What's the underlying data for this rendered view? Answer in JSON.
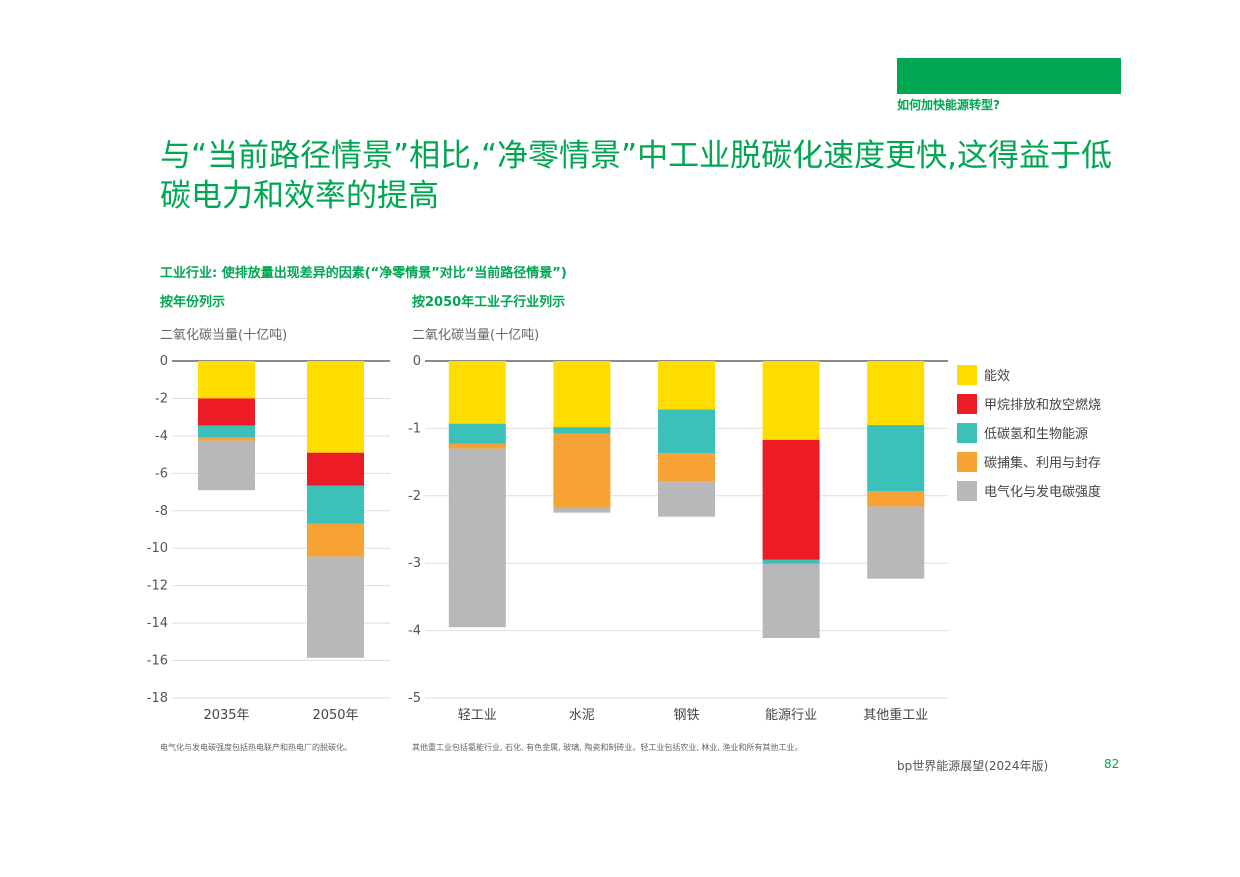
{
  "colors": {
    "accent": "#00a651",
    "efficiency": "#FFDD00",
    "methane": "#ED1C24",
    "hydrogen": "#3CC0BA",
    "ccus": "#F7A234",
    "electrification": "#B8B8BA",
    "axis": "#444444",
    "grid": "#dddddd"
  },
  "header": {
    "section_tag": "如何加快能源转型?",
    "title": "与“当前路径情景”相比,“净零情景”中工业脱碳化速度更快,这得益于低碳电力和效率的提高"
  },
  "subtitle": "工业行业: 使排放量出现差异的因素(“净零情景”对比“当前路径情景”)",
  "left_panel": {
    "title": "按年份列示",
    "unit": "二氧化碳当量(十亿吨)"
  },
  "right_panel": {
    "title": "按2050年工业子行业列示",
    "unit": "二氧化碳当量(十亿吨)"
  },
  "footnotes": {
    "left": "电气化与发电碳强度包括热电联产和热电厂的脱碳化。",
    "right": "其他重工业包括氨能行业, 石化, 有色金属, 玻璃, 陶瓷和制砖业。轻工业包括农业, 林业, 渔业和所有其他工业。"
  },
  "footer": {
    "publication": "bp世界能源展望(2024年版)",
    "page_number": "82"
  },
  "chart_data": [
    {
      "type": "bar",
      "stacked": true,
      "categories": [
        "2035年",
        "2050年"
      ],
      "series": [
        {
          "name": "能效",
          "color": "#FFDD00",
          "values": [
            -2.0,
            -4.9
          ]
        },
        {
          "name": "甲烷排放和放空燃烧",
          "color": "#ED1C24",
          "values": [
            -1.45,
            -1.75
          ]
        },
        {
          "name": "低碳氢和生物能源",
          "color": "#3CC0BA",
          "values": [
            -0.65,
            -2.05
          ]
        },
        {
          "name": "碳捕集、利用与封存",
          "color": "#F7A234",
          "values": [
            -0.15,
            -1.75
          ]
        },
        {
          "name": "电气化与发电碳强度",
          "color": "#B8B8BA",
          "values": [
            -2.65,
            -5.4
          ]
        }
      ],
      "ylim": [
        -18,
        0
      ],
      "yticks": [
        0,
        -2,
        -4,
        -6,
        -8,
        -10,
        -12,
        -14,
        -16,
        -18
      ],
      "grid": true
    },
    {
      "type": "bar",
      "stacked": true,
      "categories": [
        "轻工业",
        "水泥",
        "钢铁",
        "能源行业",
        "其他重工业"
      ],
      "series": [
        {
          "name": "能效",
          "color": "#FFDD00",
          "values": [
            -0.93,
            -0.98,
            -0.72,
            -1.17,
            -0.95
          ]
        },
        {
          "name": "甲烷排放和放空燃烧",
          "color": "#ED1C24",
          "values": [
            0,
            0,
            0,
            -1.78,
            0
          ]
        },
        {
          "name": "低碳氢和生物能源",
          "color": "#3CC0BA",
          "values": [
            -0.3,
            -0.1,
            -0.65,
            -0.06,
            -0.98
          ]
        },
        {
          "name": "碳捕集、利用与封存",
          "color": "#F7A234",
          "values": [
            -0.07,
            -1.1,
            -0.42,
            0,
            -0.23
          ]
        },
        {
          "name": "电气化与发电碳强度",
          "color": "#B8B8BA",
          "values": [
            -2.65,
            -0.07,
            -0.52,
            -1.1,
            -1.07
          ]
        }
      ],
      "ylim": [
        -5,
        0
      ],
      "yticks": [
        0,
        -1,
        -2,
        -3,
        -4,
        -5
      ],
      "grid": true
    }
  ]
}
